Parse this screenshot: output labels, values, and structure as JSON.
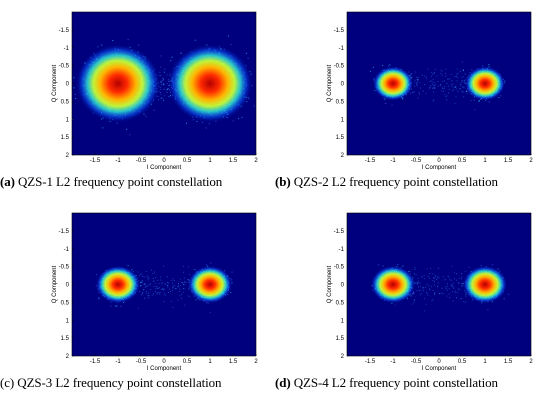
{
  "colors": {
    "background": "#00007f",
    "axis": "#000000"
  },
  "chart_data": [
    {
      "type": "scatter",
      "title": "",
      "xlabel": "I Component",
      "ylabel": "Q Component",
      "xlim": [
        -2,
        2
      ],
      "ylim": [
        -2,
        2
      ],
      "y_inverted": true,
      "xticks": [
        "-1.5",
        "-1",
        "-0.5",
        "0",
        "0.5",
        "1",
        "1.5",
        "2"
      ],
      "xtick_values": [
        -1.5,
        -1,
        -0.5,
        0,
        0.5,
        1,
        1.5,
        2
      ],
      "yticks": [
        "-1.5",
        "-1",
        "-0.5",
        "0",
        "0.5",
        "1",
        "1.5",
        "2"
      ],
      "ytick_values": [
        -1.5,
        -1,
        -0.5,
        0,
        0.5,
        1,
        1.5,
        2
      ],
      "clusters": [
        {
          "x": -1,
          "y": 0,
          "spread_x": 0.42,
          "spread_y": 0.5
        },
        {
          "x": 1,
          "y": 0,
          "spread_x": 0.42,
          "spread_y": 0.5
        }
      ],
      "bridge": 0.35,
      "caption_label": "(a)",
      "caption_text": " QZS-1 L2 frequency point constellation"
    },
    {
      "type": "scatter",
      "title": "",
      "xlabel": "I Component",
      "ylabel": "Q Component",
      "xlim": [
        -2,
        2
      ],
      "ylim": [
        -2,
        2
      ],
      "y_inverted": true,
      "xticks": [
        "-1.5",
        "-1",
        "-0.5",
        "0",
        "0.5",
        "1",
        "1.5",
        "2"
      ],
      "xtick_values": [
        -1.5,
        -1,
        -0.5,
        0,
        0.5,
        1,
        1.5,
        2
      ],
      "yticks": [
        "-1.5",
        "-1",
        "-0.5",
        "0",
        "0.5",
        "1",
        "1.5",
        "2"
      ],
      "ytick_values": [
        -1.5,
        -1,
        -0.5,
        0,
        0.5,
        1,
        1.5,
        2
      ],
      "clusters": [
        {
          "x": -1,
          "y": 0,
          "spread_x": 0.2,
          "spread_y": 0.22
        },
        {
          "x": 1,
          "y": 0,
          "spread_x": 0.2,
          "spread_y": 0.22
        }
      ],
      "bridge": 0.25,
      "caption_label": "(b)",
      "caption_text": " QZS-2 L2 frequency point constellation"
    },
    {
      "type": "scatter",
      "title": "",
      "xlabel": "I Component",
      "ylabel": "Q Component",
      "xlim": [
        -2,
        2
      ],
      "ylim": [
        -2,
        2
      ],
      "y_inverted": true,
      "xticks": [
        "-1.5",
        "-1",
        "-0.5",
        "0",
        "0.5",
        "1",
        "1.5",
        "2"
      ],
      "xtick_values": [
        -1.5,
        -1,
        -0.5,
        0,
        0.5,
        1,
        1.5,
        2
      ],
      "yticks": [
        "-1.5",
        "-1",
        "-0.5",
        "0",
        "0.5",
        "1",
        "1.5",
        "2"
      ],
      "ytick_values": [
        -1.5,
        -1,
        -0.5,
        0,
        0.5,
        1,
        1.5,
        2
      ],
      "clusters": [
        {
          "x": -1,
          "y": 0,
          "spread_x": 0.22,
          "spread_y": 0.24
        },
        {
          "x": 1,
          "y": 0,
          "spread_x": 0.22,
          "spread_y": 0.24
        }
      ],
      "bridge": 0.25,
      "caption_label": "(c)",
      "caption_text": " QZS-3 L2 frequency point constellation"
    },
    {
      "type": "scatter",
      "title": "",
      "xlabel": "I Component",
      "ylabel": "Q Component",
      "xlim": [
        -2,
        2
      ],
      "ylim": [
        -2,
        2
      ],
      "y_inverted": true,
      "xticks": [
        "-1.5",
        "-1",
        "-0.5",
        "0",
        "0.5",
        "1",
        "1.5",
        "2"
      ],
      "xtick_values": [
        -1.5,
        -1,
        -0.5,
        0,
        0.5,
        1,
        1.5,
        2
      ],
      "yticks": [
        "-1.5",
        "-1",
        "-0.5",
        "0",
        "0.5",
        "1",
        "1.5",
        "2"
      ],
      "ytick_values": [
        -1.5,
        -1,
        -0.5,
        0,
        0.5,
        1,
        1.5,
        2
      ],
      "clusters": [
        {
          "x": -1,
          "y": 0,
          "spread_x": 0.22,
          "spread_y": 0.24
        },
        {
          "x": 1,
          "y": 0,
          "spread_x": 0.22,
          "spread_y": 0.24
        }
      ],
      "bridge": 0.25,
      "caption_label": "(d)",
      "caption_text": " QZS-4 L2 frequency point constellation"
    }
  ]
}
